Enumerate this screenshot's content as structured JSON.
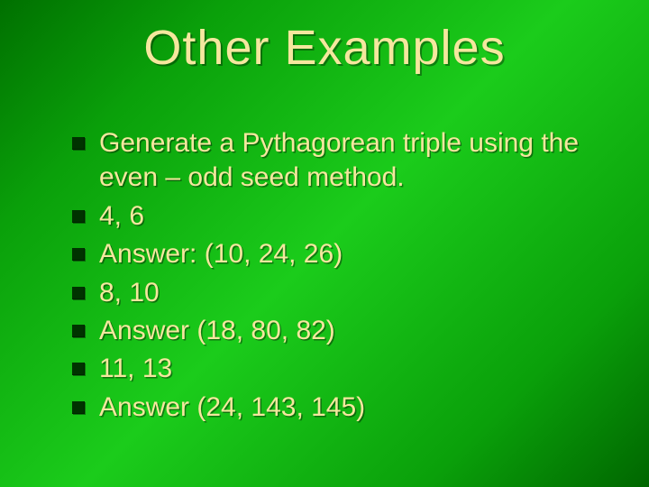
{
  "slide": {
    "title": "Other Examples",
    "title_fontsize": 54,
    "title_font": "Impact",
    "body_fontsize": 30,
    "body_font": "Arial",
    "text_color": "#f5e79e",
    "bullet_color": "#003300",
    "shadow_color": "#000000",
    "background_gradient": [
      "#007000",
      "#0aa00a",
      "#1bcc1b",
      "#0aa00a",
      "#006600"
    ],
    "bullets": [
      "Generate a Pythagorean triple using the even – odd seed method.",
      "4, 6",
      "Answer: (10, 24, 26)",
      "8, 10",
      "Answer (18, 80, 82)",
      "11, 13",
      "Answer (24, 143, 145)"
    ]
  }
}
